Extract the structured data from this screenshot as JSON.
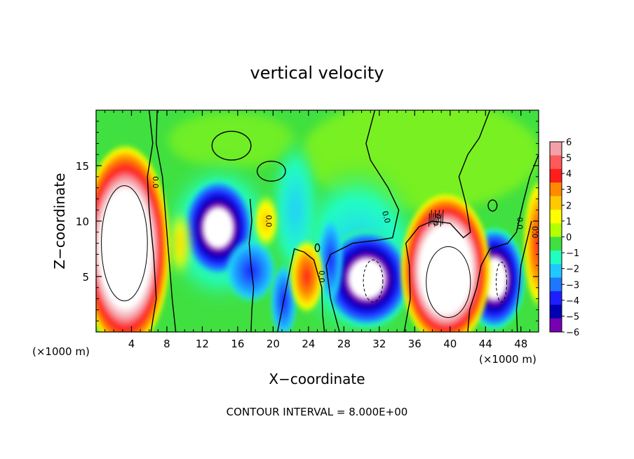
{
  "chart_data": {
    "type": "heatmap",
    "title": "vertical velocity",
    "xlabel": "X−coordinate",
    "ylabel": "Z−coordinate",
    "x_unit_left": "(×1000 m)",
    "x_unit_right": "(×1000 m)",
    "footer": "CONTOUR INTERVAL = 8.000E+00",
    "xlim": [
      0,
      50
    ],
    "ylim": [
      0,
      20
    ],
    "x_ticks": [
      4,
      8,
      12,
      16,
      20,
      24,
      28,
      32,
      36,
      40,
      44,
      48
    ],
    "y_ticks": [
      5,
      10,
      15
    ],
    "contour_label": "0.0",
    "colorbar": {
      "min": -6,
      "max": 6,
      "labels": [
        "6",
        "5",
        "4",
        "3",
        "2",
        "1",
        "0",
        "−1",
        "−2",
        "−3",
        "−4",
        "−5",
        "−6"
      ],
      "colors": [
        "#f4a0a8",
        "#ff5a5a",
        "#ff1e1e",
        "#ff8a00",
        "#ffc800",
        "#ffff00",
        "#b4ff00",
        "#40e040",
        "#20ffc0",
        "#20c8ff",
        "#1e78ff",
        "#1e1eff",
        "#0000b4",
        "#7800b4"
      ]
    },
    "features": [
      {
        "kind": "updraft",
        "x": 3.5,
        "z": 7.5,
        "peak": 14
      },
      {
        "kind": "downdraft",
        "x": 13.5,
        "z": 9.5,
        "peak": -12
      },
      {
        "kind": "updraft",
        "x": 23.5,
        "z": 5,
        "peak": 5
      },
      {
        "kind": "downdraft",
        "x": 30.5,
        "z": 4.5,
        "peak": -13
      },
      {
        "kind": "updraft",
        "x": 39.5,
        "z": 5.5,
        "peak": 14
      },
      {
        "kind": "downdraft",
        "x": 45,
        "z": 5,
        "peak": -12
      },
      {
        "kind": "updraft",
        "x": 49.5,
        "z": 8,
        "peak": 6
      }
    ]
  }
}
